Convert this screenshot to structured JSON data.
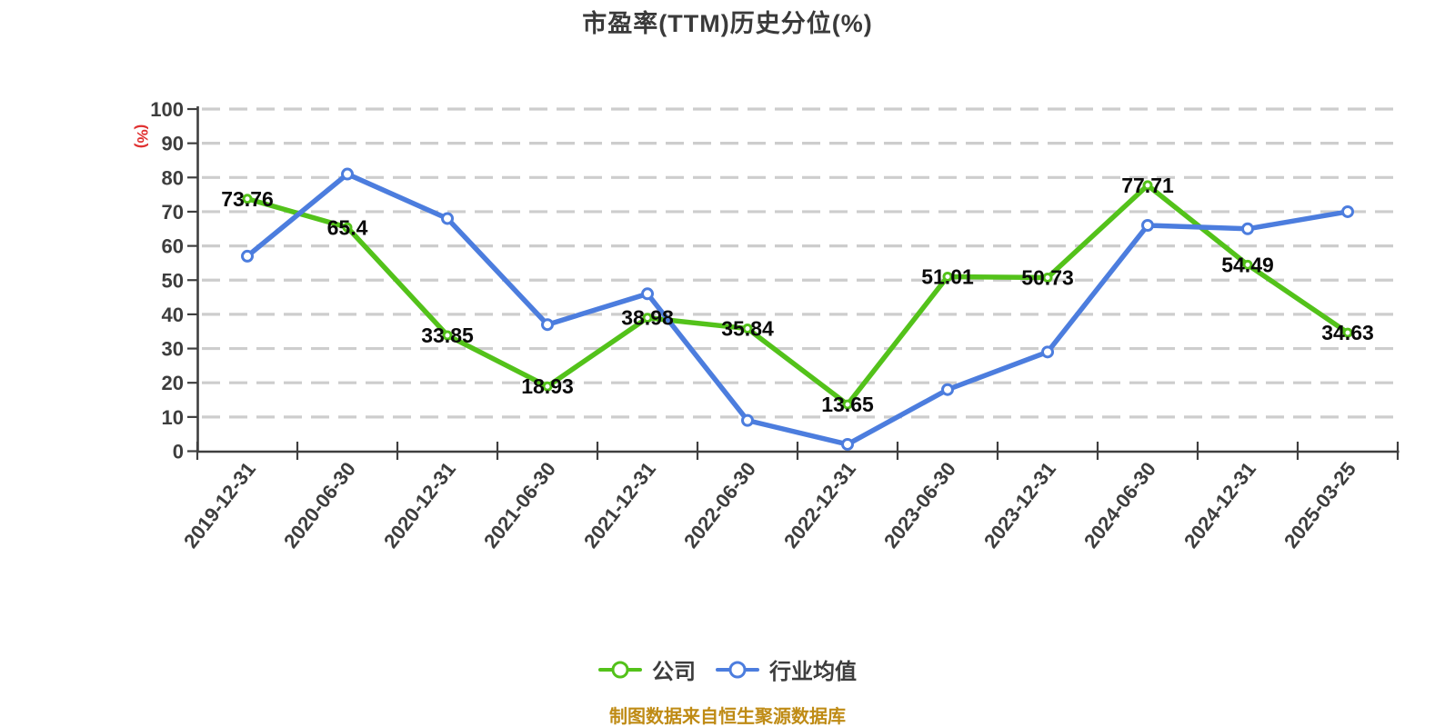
{
  "title": "市盈率(TTM)历史分位(%)",
  "y_axis_unit": "(%)",
  "footer_note": "制图数据来自恒生聚源数据库",
  "legend": {
    "items": [
      {
        "label": "公司",
        "color": "#53c21a"
      },
      {
        "label": "行业均值",
        "color": "#4c7dde"
      }
    ]
  },
  "colors": {
    "company_line": "#53c21a",
    "industry_line": "#4c7dde",
    "grid_line": "#cdcdcd",
    "axis_line": "#3f3f3f",
    "tick_text": "#3d3d3d",
    "title_text": "#3a3a3a",
    "unit_text": "#e03131",
    "footer_text": "#bf8b15",
    "point_label_text": "#0a0a0a",
    "marker_fill": "#ffffff"
  },
  "chart_data": {
    "type": "line",
    "title": "市盈率(TTM)历史分位(%)",
    "ylabel": "(%)",
    "xlabel": "",
    "ylim": [
      0,
      100
    ],
    "ytick_step": 10,
    "ytick_labels": [
      "0",
      "10",
      "20",
      "30",
      "40",
      "50",
      "60",
      "70",
      "80",
      "90",
      "100"
    ],
    "grid": "horizontal-dashed",
    "legend_position": "bottom",
    "categories": [
      "2019-12-31",
      "2020-06-30",
      "2020-12-31",
      "2021-06-30",
      "2021-12-31",
      "2022-06-30",
      "2022-12-31",
      "2023-06-30",
      "2023-12-31",
      "2024-06-30",
      "2024-12-31",
      "2025-03-25"
    ],
    "series": [
      {
        "name": "公司",
        "color": "#53c21a",
        "values": [
          73.76,
          65.4,
          33.85,
          18.93,
          38.98,
          35.84,
          13.65,
          51.01,
          50.73,
          77.71,
          54.49,
          34.63
        ],
        "point_labels": [
          "73.76",
          "65.4",
          "33.85",
          "18.93",
          "38.98",
          "35.84",
          "13.65",
          "51.01",
          "50.73",
          "77.71",
          "54.49",
          "34.63"
        ],
        "labels_visible": true
      },
      {
        "name": "行业均值",
        "color": "#4c7dde",
        "values": [
          57,
          81,
          68,
          37,
          46,
          9,
          2,
          18,
          29,
          66,
          65,
          70
        ],
        "point_labels": [],
        "labels_visible": false
      }
    ]
  }
}
